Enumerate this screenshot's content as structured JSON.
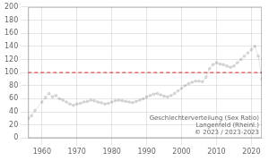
{
  "chart_data": {
    "type": "line",
    "x": [
      1956,
      1957,
      1958,
      1960,
      1961,
      1962,
      1963,
      1964,
      1965,
      1966,
      1967,
      1968,
      1969,
      1970,
      1971,
      1972,
      1973,
      1974,
      1975,
      1976,
      1977,
      1978,
      1979,
      1980,
      1981,
      1982,
      1983,
      1984,
      1985,
      1986,
      1987,
      1988,
      1989,
      1990,
      1991,
      1992,
      1993,
      1994,
      1995,
      1996,
      1997,
      1998,
      1999,
      2000,
      2001,
      2002,
      2003,
      2004,
      2005,
      2006,
      2007,
      2008,
      2009,
      2010,
      2011,
      2012,
      2013,
      2014,
      2015,
      2016,
      2017,
      2018,
      2019,
      2020,
      2021,
      2022,
      2023
    ],
    "values": [
      30,
      34,
      42,
      55,
      62,
      68,
      63,
      65,
      60,
      58,
      55,
      52,
      50,
      52,
      53,
      55,
      56,
      58,
      57,
      55,
      54,
      52,
      53,
      55,
      57,
      58,
      57,
      56,
      55,
      54,
      56,
      58,
      60,
      63,
      65,
      67,
      68,
      66,
      64,
      63,
      65,
      68,
      72,
      76,
      80,
      83,
      85,
      87,
      87,
      86,
      93,
      106,
      112,
      115,
      113,
      112,
      110,
      108,
      110,
      115,
      120,
      125,
      130,
      135,
      140,
      125,
      90
    ],
    "marker": "circle",
    "xlim": [
      1956,
      2023
    ],
    "xticks": [
      1960,
      1970,
      1980,
      1990,
      2000,
      2010,
      2020
    ],
    "ylim": [
      0,
      200
    ],
    "yticks": [
      0,
      20,
      40,
      60,
      80,
      100,
      120,
      140,
      160,
      180,
      200
    ],
    "grid": true,
    "reference_line": {
      "y": 100,
      "color": "#dd2222",
      "line_style": "dashed"
    },
    "annotation": "Geschlechterverteilung (Sex Ratio)\nLangenfeld (Rheinl.)\n© 2023 / 2023-2023"
  }
}
